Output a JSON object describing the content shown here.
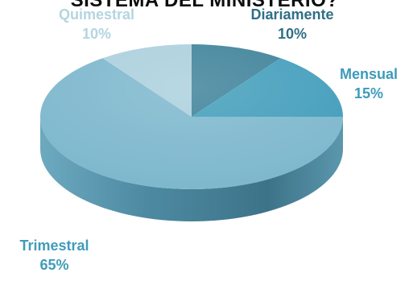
{
  "chart_data": {
    "type": "pie",
    "title": "SISTEMA DEL MINISTERIO?",
    "categories": [
      "Diariamente",
      "Mensual",
      "Trimestral",
      "Quimestral"
    ],
    "values": [
      10,
      15,
      65,
      10
    ],
    "labels": [
      "10%",
      "15%",
      "65%",
      "10%"
    ],
    "colors": [
      "#3a7f98",
      "#3f9cba",
      "#7bb6cc",
      "#a9cfdc"
    ],
    "label_colors": [
      "#2f6f86",
      "#3c9bbb",
      "#3f9cba",
      "#b3d5e0"
    ]
  }
}
